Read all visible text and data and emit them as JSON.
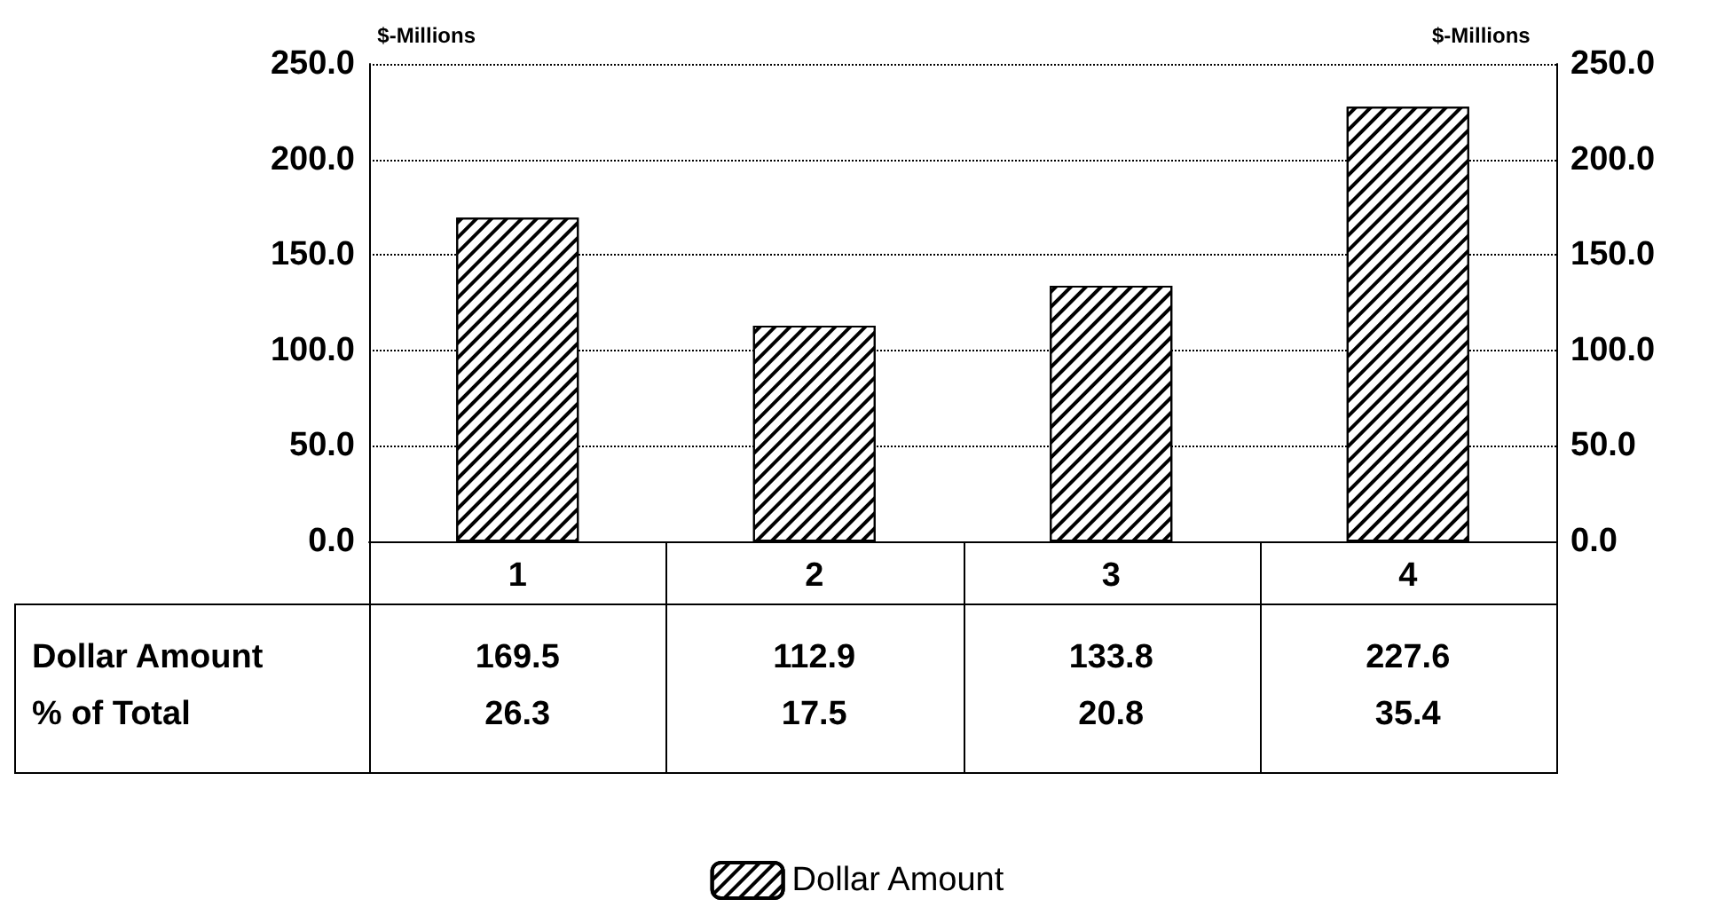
{
  "chart_data": {
    "type": "bar",
    "ylabel": "$-Millions",
    "y2label": "$-Millions",
    "categories": [
      "1",
      "2",
      "3",
      "4"
    ],
    "series": [
      {
        "name": "Dollar Amount",
        "color": "#000000",
        "values": [
          169.5,
          112.9,
          133.8,
          227.6
        ]
      }
    ],
    "annotations": [
      "% of Total",
      "26.3",
      "17.5",
      "20.8",
      "35.4"
    ],
    "ylim": [
      0,
      250
    ],
    "yticks": [
      {
        "value": 0,
        "label": "0.0"
      },
      {
        "value": 50,
        "label": "50.0"
      },
      {
        "value": 100,
        "label": "100.0"
      },
      {
        "value": 150,
        "label": "150.0"
      },
      {
        "value": 200,
        "label": "200.0"
      },
      {
        "value": 250,
        "label": "250.0"
      }
    ],
    "y2lim": [
      0,
      250
    ],
    "y2ticks": [
      {
        "value": 0,
        "label": "0.0"
      },
      {
        "value": 50,
        "label": "50.0"
      },
      {
        "value": 100,
        "label": "100.0"
      },
      {
        "value": 150,
        "label": "150.0"
      },
      {
        "value": 200,
        "label": "200.0"
      },
      {
        "value": 250,
        "label": "250.0"
      }
    ],
    "grid": "y",
    "legend": "bottom",
    "data_labels": true
  }
}
